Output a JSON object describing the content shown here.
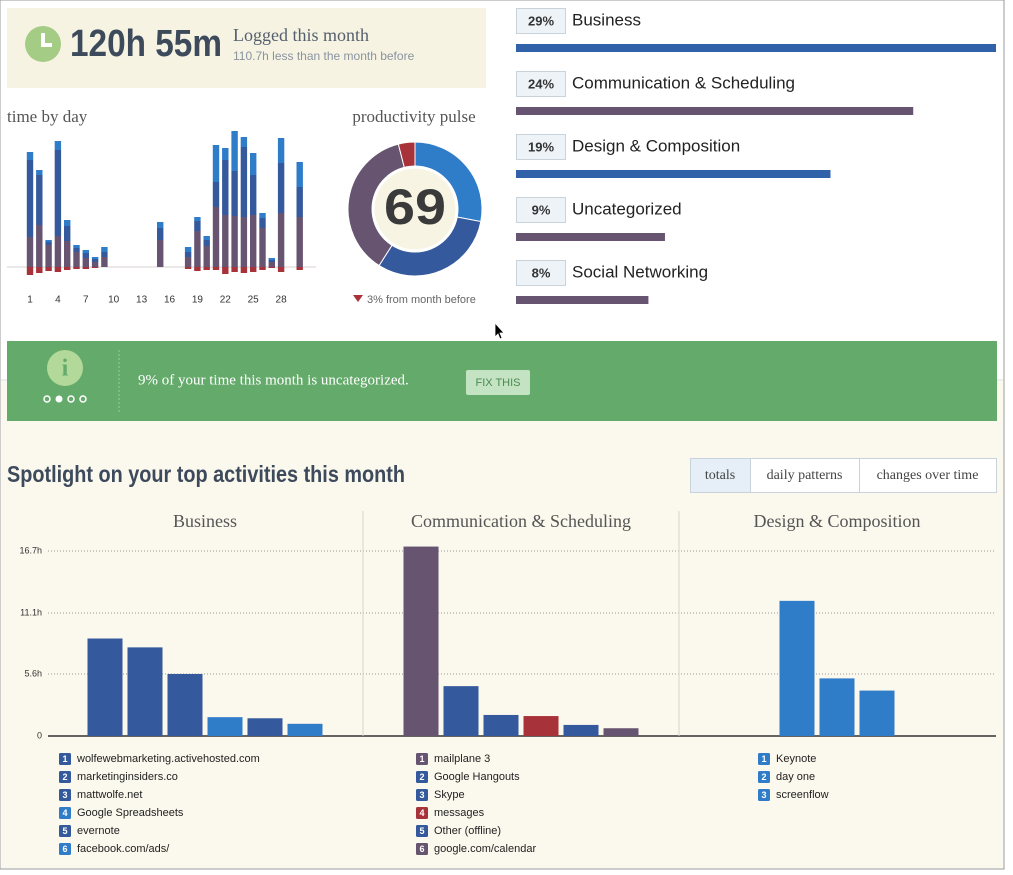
{
  "summary": {
    "time": "120h 55m",
    "label": "Logged this month",
    "comparison": "110.7h less than the month before"
  },
  "time_by_day": {
    "type": "bar",
    "stacked": true,
    "title": "time by day",
    "categories": [
      1,
      null,
      null,
      4,
      null,
      null,
      7,
      null,
      null,
      10,
      null,
      null,
      13,
      null,
      null,
      16,
      null,
      null,
      19,
      null,
      null,
      22,
      null,
      null,
      25,
      null,
      null,
      28,
      null,
      null,
      null
    ],
    "ylim": [
      -1.3,
      13.7
    ],
    "series": [
      {
        "color": "#665470",
        "values": [
          3.0,
          4.2,
          2.2,
          3.1,
          2.6,
          1.5,
          0.9,
          0.5,
          1.0,
          0,
          0,
          0,
          0,
          0,
          2.7,
          0,
          0,
          1.0,
          3.6,
          2.1,
          6.0,
          5.2,
          5.1,
          5.0,
          5.2,
          3.9,
          0.5,
          5.4,
          0,
          5.0,
          0
        ]
      },
      {
        "color": "#34599c",
        "values": [
          7.7,
          5.0,
          0.3,
          8.6,
          1.5,
          0.4,
          0.5,
          0.3,
          0.5,
          0,
          0,
          0,
          0,
          0,
          1.2,
          0,
          0,
          0.5,
          1.0,
          0.6,
          2.5,
          5.5,
          4.5,
          7.0,
          4.0,
          1.0,
          0.2,
          5.0,
          0,
          3.0,
          0
        ]
      },
      {
        "color": "#2f7cc9",
        "values": [
          0.8,
          0.5,
          0.2,
          0.9,
          0.6,
          0.3,
          0.3,
          0.2,
          0.5,
          0,
          0,
          0,
          0,
          0,
          0.6,
          0,
          0,
          0.5,
          0.4,
          0.4,
          3.7,
          1.2,
          4.0,
          1.0,
          2.2,
          0.5,
          0.2,
          2.5,
          0,
          2.5,
          0
        ]
      },
      {
        "color": "#a8323a",
        "values": [
          -0.8,
          -0.6,
          -0.4,
          -0.5,
          -0.3,
          -0.2,
          -0.2,
          -0.1,
          0,
          0,
          0,
          0,
          0,
          0,
          0,
          0,
          0,
          -0.2,
          -0.4,
          -0.3,
          -0.3,
          -0.7,
          -0.5,
          -0.6,
          -0.5,
          -0.3,
          -0.1,
          -0.5,
          0,
          -0.3,
          0
        ]
      }
    ]
  },
  "pulse": {
    "type": "pie",
    "donut": true,
    "title": "productivity pulse",
    "score": 69,
    "change": "3% from month before",
    "values": [
      28,
      31,
      37,
      4
    ],
    "colors": [
      "#2f7cc9",
      "#34599c",
      "#665470",
      "#a8323a"
    ]
  },
  "categories": {
    "type": "bar",
    "orientation": "horizontal",
    "categories": [
      "Business",
      "Communication & Scheduling",
      "Design & Composition",
      "Uncategorized",
      "Social Networking"
    ],
    "values": [
      29,
      24,
      19,
      9,
      8
    ],
    "value_labels": [
      "29%",
      "24%",
      "19%",
      "9%",
      "8%"
    ],
    "colors": [
      "#3162a9",
      "#665470",
      "#3162a9",
      "#665470",
      "#665470"
    ],
    "xlim": [
      0,
      29
    ]
  },
  "banner": {
    "message": "9% of your time this month is uncategorized.",
    "button": "FIX THIS"
  },
  "spotlight": {
    "title": "Spotlight on your top activities this month",
    "tabs": [
      "totals",
      "daily patterns",
      "changes over time"
    ],
    "active_tab": 0,
    "ylim": [
      0,
      17.5
    ],
    "yticks": [
      0,
      {
        "value": 5.6,
        "label": "5.6h"
      },
      {
        "value": 11.1,
        "label": "11.1h"
      },
      {
        "value": 16.7,
        "label": "16.7h"
      }
    ],
    "panels": [
      {
        "type": "bar",
        "title": "Business",
        "ranks": [
          1,
          2,
          3,
          4,
          5,
          6
        ],
        "categories": [
          "wolfewebmarketing.activehosted.com",
          "marketinginsiders.co",
          "mattwolfe.net",
          "Google Spreadsheets",
          "evernote",
          "facebook.com/ads/"
        ],
        "values": [
          8.8,
          8.0,
          5.6,
          1.7,
          1.6,
          1.1
        ],
        "colors": [
          "#34599c",
          "#34599c",
          "#34599c",
          "#2f7cc9",
          "#34599c",
          "#2f7cc9"
        ]
      },
      {
        "type": "bar",
        "title": "Communication & Scheduling",
        "ranks": [
          1,
          2,
          3,
          4,
          5,
          6
        ],
        "categories": [
          "mailplane 3",
          "Google Hangouts",
          "Skype",
          "messages",
          "Other (offline)",
          "google.com/calendar"
        ],
        "values": [
          17.1,
          4.5,
          1.9,
          1.8,
          1.0,
          0.7
        ],
        "colors": [
          "#665470",
          "#34599c",
          "#34599c",
          "#a8323a",
          "#34599c",
          "#665470"
        ]
      },
      {
        "type": "bar",
        "title": "Design & Composition",
        "ranks": [
          1,
          2,
          3
        ],
        "categories": [
          "Keynote",
          "day one",
          "screenflow"
        ],
        "values": [
          12.2,
          5.2,
          4.1
        ],
        "colors": [
          "#2f7cc9",
          "#2f7cc9",
          "#2f7cc9"
        ]
      }
    ]
  }
}
